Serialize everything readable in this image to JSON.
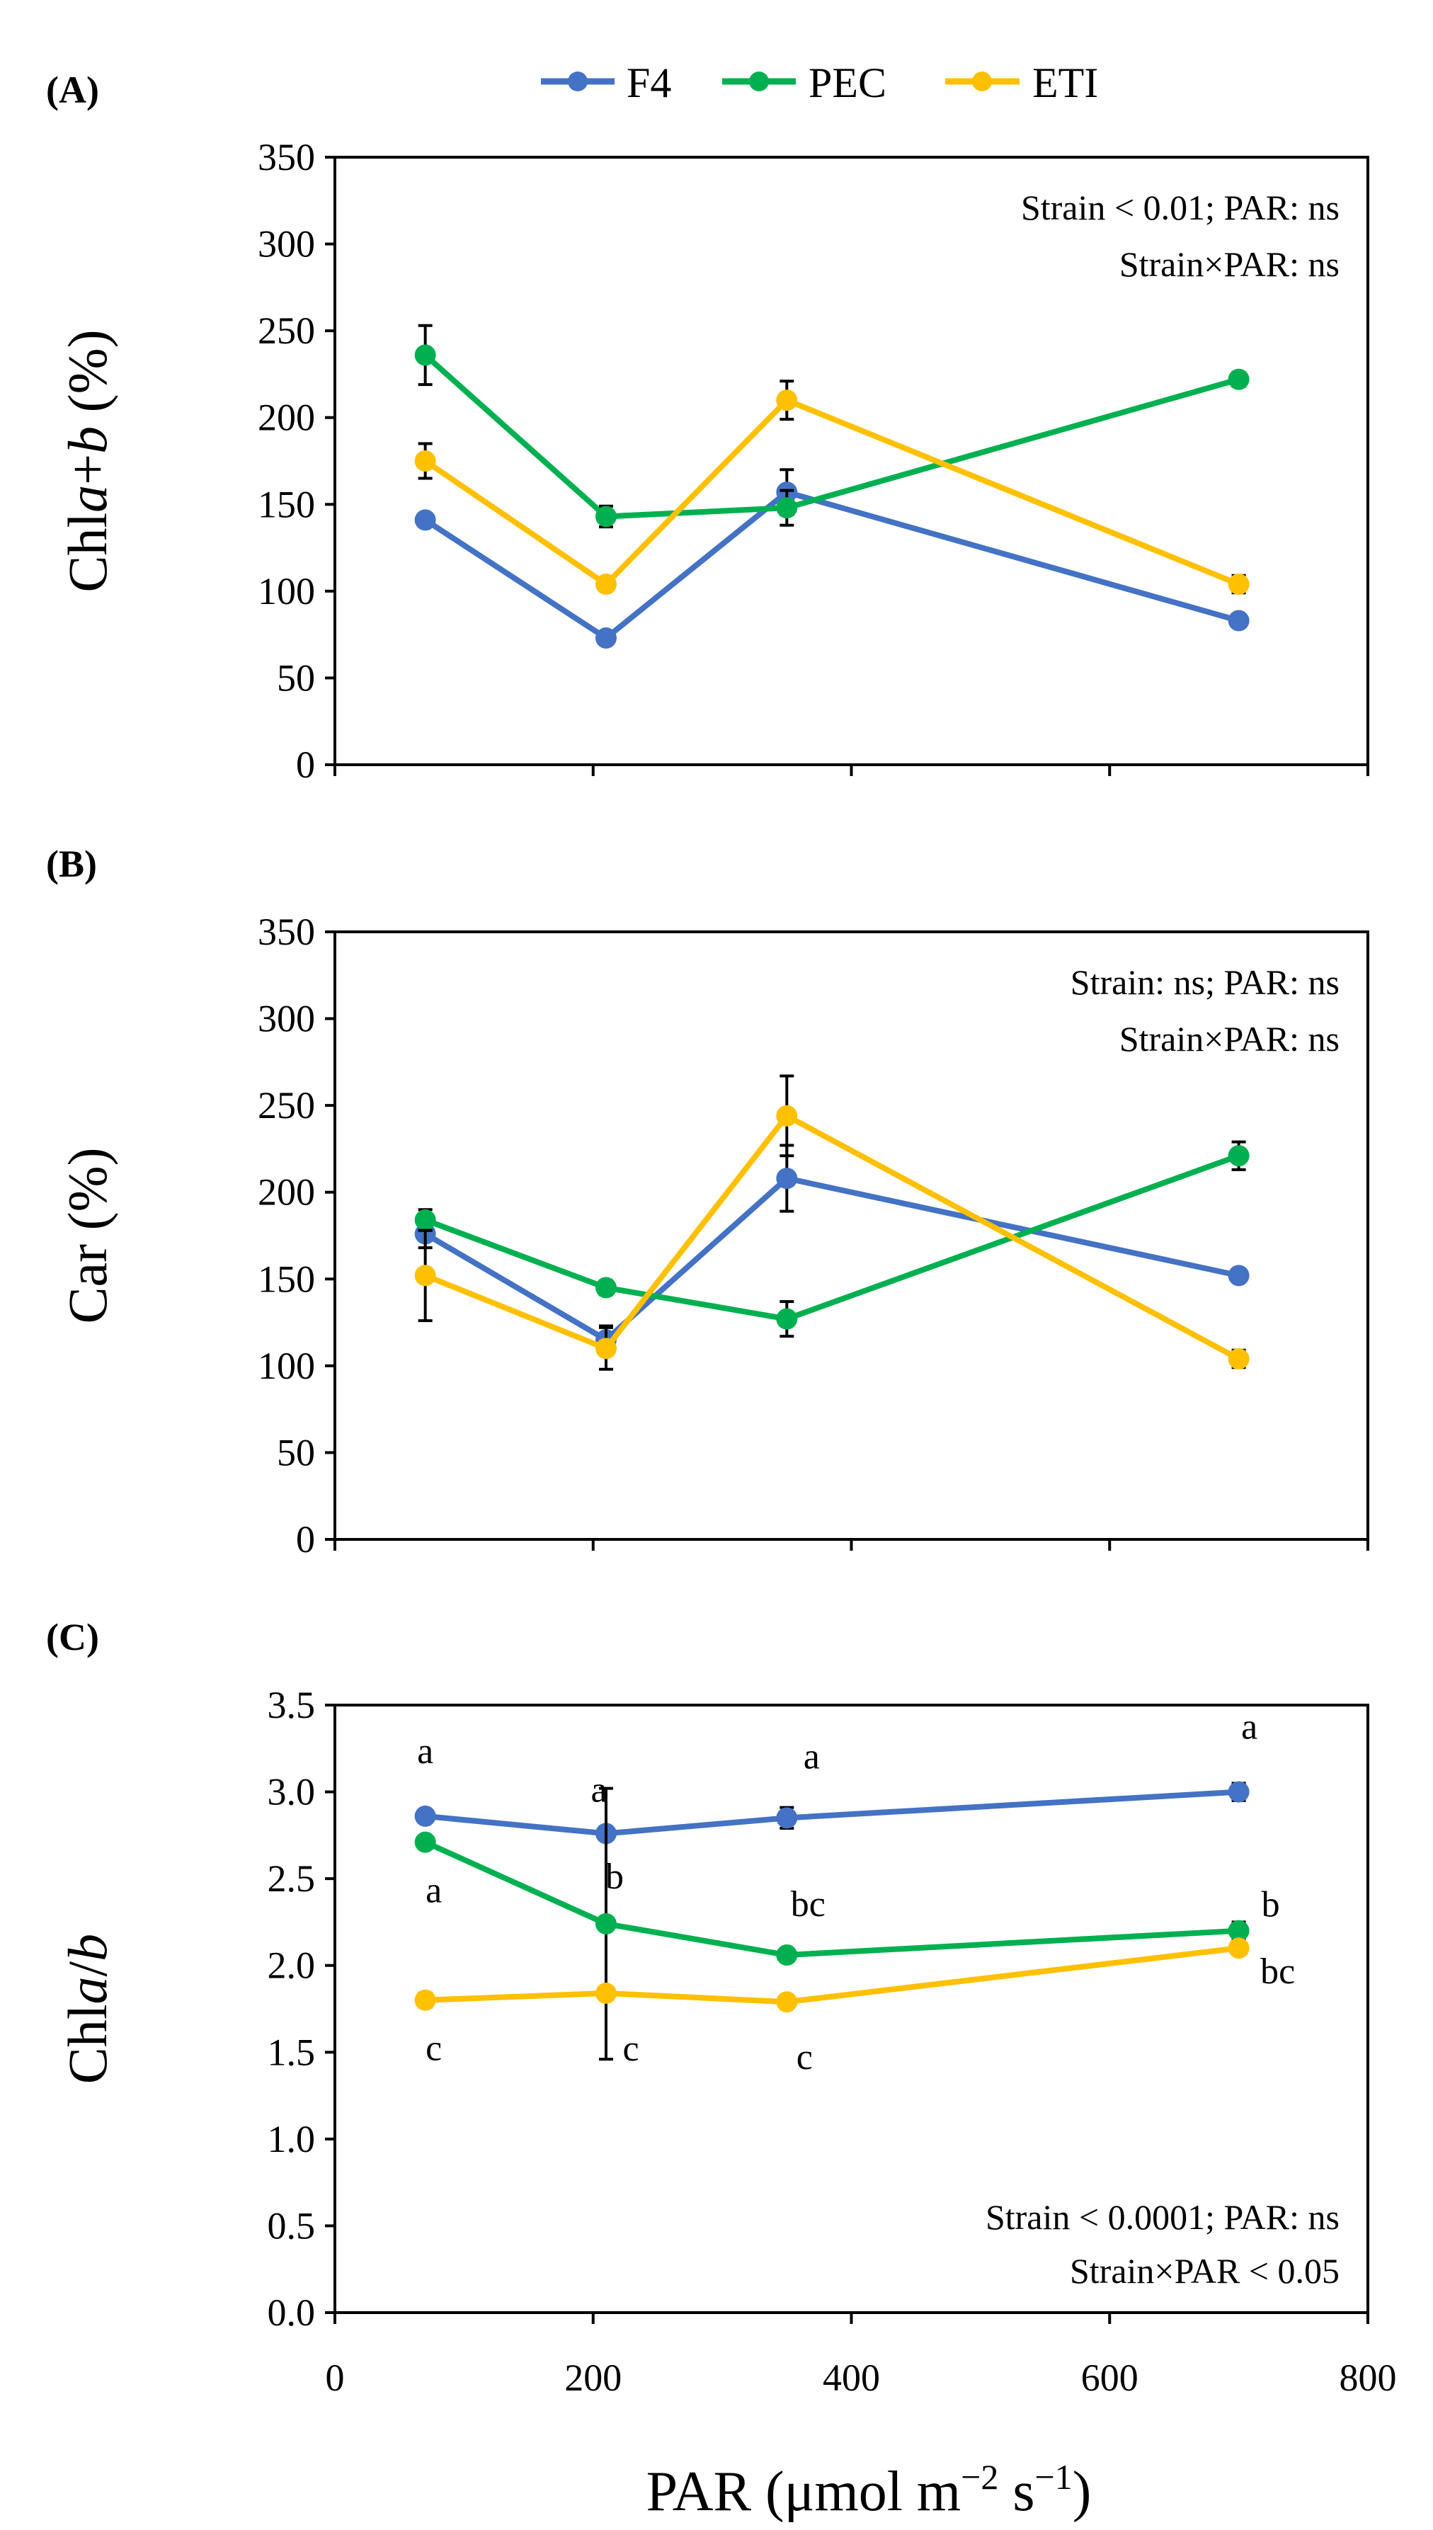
{
  "chart_data": [
    {
      "type": "line",
      "panel_label": "(A)",
      "ylabel_prefix": "Chl",
      "ylabel_italic": "a",
      "ylabel_mid": "+",
      "ylabel_italic2": "b",
      "ylabel_suffix": " (%)",
      "ylim": [
        0,
        350
      ],
      "yticks": [
        "0",
        "50",
        "100",
        "150",
        "200",
        "250",
        "300",
        "350"
      ],
      "yticks_values": [
        0,
        50,
        100,
        150,
        200,
        250,
        300,
        350
      ],
      "x": [
        70,
        210,
        350,
        700
      ],
      "series": [
        {
          "name": "F4",
          "values": [
            141,
            73,
            157,
            83
          ],
          "errors": [
            3,
            3,
            13,
            3
          ]
        },
        {
          "name": "PEC",
          "values": [
            236,
            143,
            148,
            222
          ],
          "errors": [
            17,
            6,
            10,
            4
          ]
        },
        {
          "name": "ETI",
          "values": [
            175,
            104,
            210,
            104
          ],
          "errors": [
            10,
            3,
            11,
            5
          ]
        }
      ],
      "annotations": [
        "Strain < 0.01; PAR: ns",
        "Strain×PAR: ns"
      ]
    },
    {
      "type": "line",
      "panel_label": "(B)",
      "ylabel_prefix": "Car (%)",
      "ylim": [
        0,
        350
      ],
      "yticks": [
        "0",
        "50",
        "100",
        "150",
        "200",
        "250",
        "300",
        "350"
      ],
      "yticks_values": [
        0,
        50,
        100,
        150,
        200,
        250,
        300,
        350
      ],
      "x": [
        70,
        210,
        350,
        700
      ],
      "series": [
        {
          "name": "F4",
          "values": [
            176,
            115,
            208,
            152
          ],
          "errors": [
            8,
            8,
            19,
            3
          ]
        },
        {
          "name": "PEC",
          "values": [
            184,
            145,
            127,
            221
          ],
          "errors": [
            6,
            4,
            10,
            8
          ]
        },
        {
          "name": "ETI",
          "values": [
            152,
            110,
            244,
            104
          ],
          "errors": [
            26,
            12,
            23,
            5
          ]
        }
      ],
      "annotations": [
        "Strain: ns; PAR: ns",
        "Strain×PAR: ns"
      ]
    },
    {
      "type": "line",
      "panel_label": "(C)",
      "ylabel_prefix": "Chl",
      "ylabel_italic": "a",
      "ylabel_mid": "/",
      "ylabel_italic2": "b",
      "ylabel_suffix": "",
      "ylim": [
        0,
        3.5
      ],
      "yticks": [
        "0.0",
        "0.5",
        "1.0",
        "1.5",
        "2.0",
        "2.5",
        "3.0",
        "3.5"
      ],
      "yticks_values": [
        0,
        0.5,
        1,
        1.5,
        2,
        2.5,
        3,
        3.5
      ],
      "x": [
        70,
        210,
        350,
        700
      ],
      "xticks": [
        "0",
        "200",
        "400",
        "600",
        "800"
      ],
      "series": [
        {
          "name": "F4",
          "values": [
            2.86,
            2.76,
            2.85,
            3.0
          ],
          "errors": [
            0.02,
            0.02,
            0.06,
            0.05
          ],
          "letters": [
            "a",
            "a",
            "a",
            "a"
          ]
        },
        {
          "name": "PEC",
          "values": [
            2.71,
            2.24,
            2.06,
            2.2
          ],
          "errors": [
            0.03,
            0.78,
            0.03,
            0.05
          ],
          "letters": [
            "a",
            "b",
            "bc",
            "b"
          ]
        },
        {
          "name": "ETI",
          "values": [
            1.8,
            1.84,
            1.79,
            2.1
          ],
          "errors": [
            0.04,
            0.02,
            0.03,
            0.03
          ],
          "letters": [
            "c",
            "c",
            "c",
            "bc"
          ]
        }
      ],
      "annotations": [
        "Strain < 0.0001; PAR: ns",
        "Strain×PAR < 0.05"
      ]
    }
  ],
  "xaxis": {
    "xlim": [
      0,
      800
    ],
    "xtick_values": [
      0,
      200,
      400,
      600,
      800
    ],
    "label_main": "PAR (μmol m",
    "label_exp1": "−2",
    "label_mid": " s",
    "label_exp2": "−1",
    "label_end": ")"
  },
  "legend": [
    {
      "name": "F4",
      "color": "#4472C4"
    },
    {
      "name": "PEC",
      "color": "#00B050"
    },
    {
      "name": "ETI",
      "color": "#FFC000"
    }
  ]
}
